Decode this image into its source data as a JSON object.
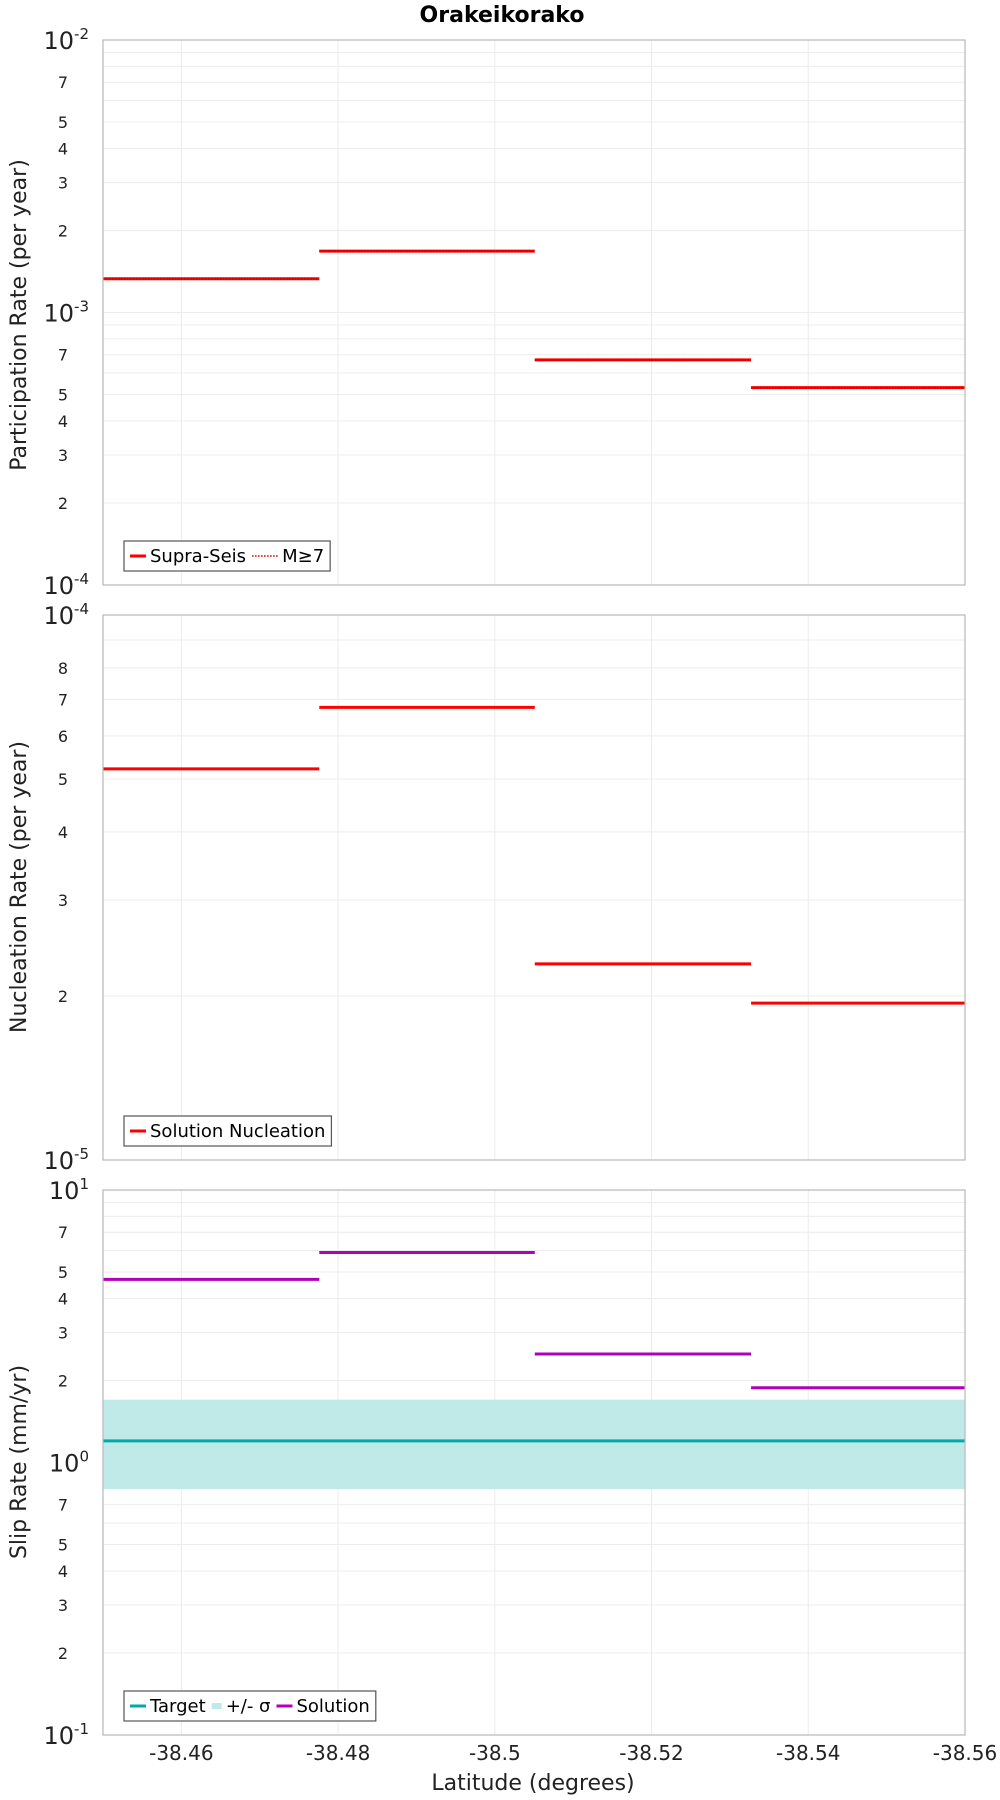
{
  "chart_data": [
    {
      "type": "line",
      "title": "Orakeikorako",
      "ylabel": "Participation Rate (per year)",
      "yscale": "log",
      "ylim": [
        0.0001,
        0.01
      ],
      "xlim": [
        -38.45,
        -38.56
      ],
      "ytick_labels": [
        "10-4",
        "2",
        "3",
        "4",
        "5",
        "7",
        "10-3",
        "2",
        "3",
        "4",
        "5",
        "7",
        "10-2"
      ],
      "legend": {
        "position": "bottom-left",
        "entries": [
          "Supra-Seis",
          "M≥7"
        ]
      },
      "series": [
        {
          "name": "Supra-Seis",
          "color": "#ff0000",
          "style": "solid",
          "segments": [
            {
              "x": [
                -38.45,
                -38.4776
              ],
              "y": 0.00133
            },
            {
              "x": [
                -38.4776,
                -38.5051
              ],
              "y": 0.00168
            },
            {
              "x": [
                -38.5051,
                -38.5327
              ],
              "y": 0.00067
            },
            {
              "x": [
                -38.5327,
                -38.56
              ],
              "y": 0.00053
            }
          ]
        },
        {
          "name": "M≥7",
          "color": "#ff0000",
          "style": "dotted",
          "segments": [
            {
              "x": [
                -38.45,
                -38.4776
              ],
              "y": 0.00133
            },
            {
              "x": [
                -38.4776,
                -38.5051
              ],
              "y": 0.00168
            },
            {
              "x": [
                -38.5051,
                -38.5327
              ],
              "y": 0.00067
            },
            {
              "x": [
                -38.5327,
                -38.56
              ],
              "y": 0.00053
            }
          ]
        }
      ]
    },
    {
      "type": "line",
      "ylabel": "Nucleation Rate (per year)",
      "yscale": "log",
      "ylim": [
        1e-05,
        0.0001
      ],
      "xlim": [
        -38.45,
        -38.56
      ],
      "ytick_labels": [
        "10-5",
        "2",
        "3",
        "4",
        "5",
        "6",
        "7",
        "8",
        "10-4"
      ],
      "legend": {
        "position": "bottom-left",
        "entries": [
          "Solution Nucleation"
        ]
      },
      "series": [
        {
          "name": "Solution Nucleation",
          "color": "#ff0000",
          "style": "solid",
          "segments": [
            {
              "x": [
                -38.45,
                -38.4776
              ],
              "y": 5.22e-05
            },
            {
              "x": [
                -38.4776,
                -38.5051
              ],
              "y": 6.77e-05
            },
            {
              "x": [
                -38.5051,
                -38.5327
              ],
              "y": 2.29e-05
            },
            {
              "x": [
                -38.5327,
                -38.56
              ],
              "y": 1.94e-05
            }
          ]
        }
      ]
    },
    {
      "type": "line",
      "ylabel": "Slip Rate (mm/yr)",
      "xlabel": "Latitude (degrees)",
      "yscale": "log",
      "ylim": [
        0.1,
        10
      ],
      "xlim": [
        -38.45,
        -38.56
      ],
      "ytick_labels": [
        "10-1",
        "2",
        "3",
        "4",
        "5",
        "7",
        "100",
        "2",
        "3",
        "4",
        "5",
        "7",
        "101"
      ],
      "x_ticks": [
        "-38.46",
        "-38.48",
        "-38.5",
        "-38.52",
        "-38.54",
        "-38.56"
      ],
      "legend": {
        "position": "bottom-left",
        "entries": [
          "Target",
          "+/- σ",
          "Solution"
        ]
      },
      "band": {
        "name": "+/- σ",
        "color": "#bfeae8",
        "lower": 0.8,
        "upper": 1.7
      },
      "series": [
        {
          "name": "Target",
          "color": "#00aaaa",
          "style": "solid",
          "segments": [
            {
              "x": [
                -38.45,
                -38.56
              ],
              "y": 1.2
            }
          ]
        },
        {
          "name": "Solution",
          "color": "#b000b8",
          "style": "solid",
          "segments": [
            {
              "x": [
                -38.45,
                -38.4776
              ],
              "y": 4.7
            },
            {
              "x": [
                -38.4776,
                -38.5051
              ],
              "y": 5.9
            },
            {
              "x": [
                -38.5051,
                -38.5327
              ],
              "y": 2.5
            },
            {
              "x": [
                -38.5327,
                -38.56
              ],
              "y": 1.88
            }
          ]
        }
      ]
    }
  ]
}
